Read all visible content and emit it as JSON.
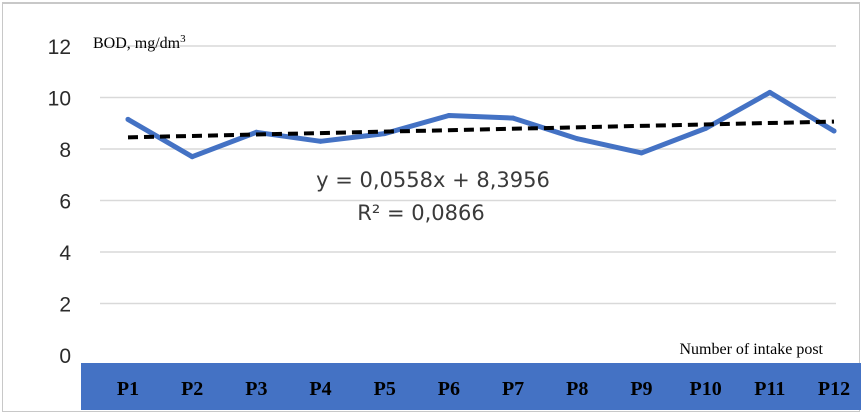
{
  "chart_data": {
    "type": "line",
    "title": "",
    "ylabel": "BOD, mg/dm",
    "ylabel_sup": "3",
    "xlabel": "Number of intake post",
    "ylim": [
      0,
      12
    ],
    "yticks": [
      0,
      2,
      4,
      6,
      8,
      10,
      12
    ],
    "grid": true,
    "categories": [
      "P1",
      "P2",
      "P3",
      "P4",
      "P5",
      "P6",
      "P7",
      "P8",
      "P9",
      "P10",
      "P11",
      "P12"
    ],
    "series": [
      {
        "values": [
          9.15,
          7.7,
          8.65,
          8.3,
          8.6,
          9.3,
          9.2,
          8.4,
          7.85,
          8.8,
          10.2,
          8.7
        ],
        "color": "#4472c4"
      }
    ],
    "trendline": {
      "slope": 0.0558,
      "intercept": 8.3956,
      "color": "#000000",
      "equation": "y = 0,0558x + 8,3956",
      "r_squared": "R² = 0,0866"
    },
    "axis_band_color": "#4472c4",
    "gridline_color": "#d9d9d9"
  }
}
